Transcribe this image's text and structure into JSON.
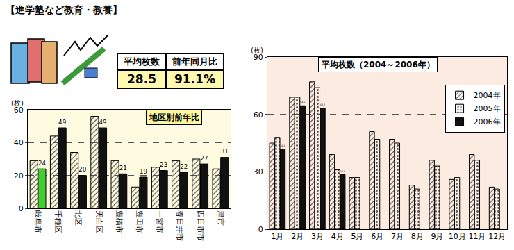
{
  "banner": "【進学塾など教育・教養】",
  "summary": {
    "headers": [
      "平均枚数",
      "前年同月比"
    ],
    "values": [
      "28.5",
      "91.1%"
    ]
  },
  "chart_data": [
    {
      "type": "bar",
      "title": "地区別前年比",
      "y_label": "(枚)",
      "categories": [
        "岐阜市",
        "千種区",
        "北区",
        "天白区",
        "豊橋市",
        "豊田市",
        "一宮市",
        "春日井市",
        "四日市市",
        "津市"
      ],
      "series": [
        {
          "color": "#bbbbbb",
          "values": [
            29,
            44,
            34,
            56,
            29,
            13,
            25,
            29,
            30,
            24
          ]
        },
        {
          "colors": [
            "#44cc33",
            "#111111",
            "#111111",
            "#111111",
            "#111111",
            "#111111",
            "#111111",
            "#111111",
            "#111111",
            "#111111"
          ],
          "values": [
            24,
            49,
            20,
            49,
            21,
            19,
            23,
            22,
            27,
            31
          ],
          "data_labels": true
        }
      ],
      "ylim": [
        0,
        60
      ],
      "yticks": [
        0,
        20,
        40,
        60
      ],
      "grid": true
    },
    {
      "type": "bar",
      "title": "平均枚数（2004～2006年）",
      "y_label": "(枚)",
      "categories": [
        "1月",
        "2月",
        "3月",
        "4月",
        "5月",
        "6月",
        "7月",
        "8月",
        "9月",
        "10月",
        "11月",
        "12月"
      ],
      "series": [
        {
          "name": "2004年",
          "color": "#aaaaaa",
          "values": [
            45,
            69,
            77,
            39,
            27,
            51,
            47,
            23,
            36,
            26,
            39,
            22
          ]
        },
        {
          "name": "2005年",
          "color": "#e6e6e6",
          "values": [
            48,
            69,
            74,
            31,
            27,
            47,
            45,
            21,
            33,
            27,
            36,
            21
          ]
        },
        {
          "name": "2006年",
          "color": "#111111",
          "values": [
            41.6,
            64.5,
            63.2,
            28.5,
            null,
            null,
            null,
            null,
            null,
            null,
            null,
            null
          ],
          "data_labels": true
        }
      ],
      "ylim": [
        0,
        90
      ],
      "yticks": [
        0,
        30,
        60,
        90
      ],
      "grid": true,
      "legend": "top right"
    }
  ]
}
